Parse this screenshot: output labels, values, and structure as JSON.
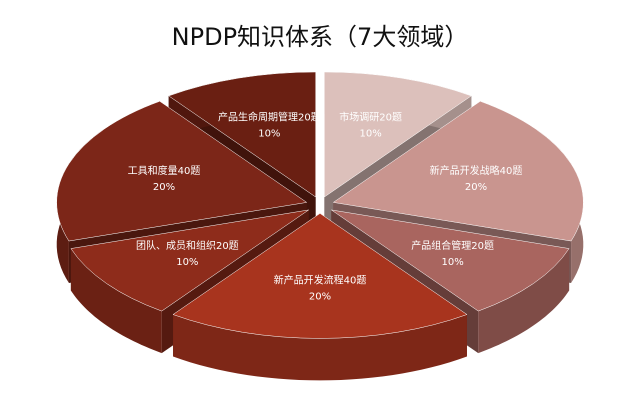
{
  "chart_data": {
    "type": "pie",
    "title": "NPDP知识体系（7大领域）",
    "categories": [
      "市场调研20题",
      "新产品开发战略40题",
      "产品组合管理20题",
      "新产品开发流程40题",
      "团队、成员和组织20题",
      "工具和度量40题",
      "产品生命周期管理20题"
    ],
    "values": [
      10,
      20,
      10,
      20,
      10,
      20,
      10
    ],
    "value_labels": [
      "10%",
      "20%",
      "10%",
      "20%",
      "10%",
      "20%",
      "10%"
    ],
    "colors": [
      "#dcc0bb",
      "#c9958f",
      "#a9655f",
      "#a8341e",
      "#8e2c1b",
      "#7c2618",
      "#6a1f12"
    ]
  }
}
